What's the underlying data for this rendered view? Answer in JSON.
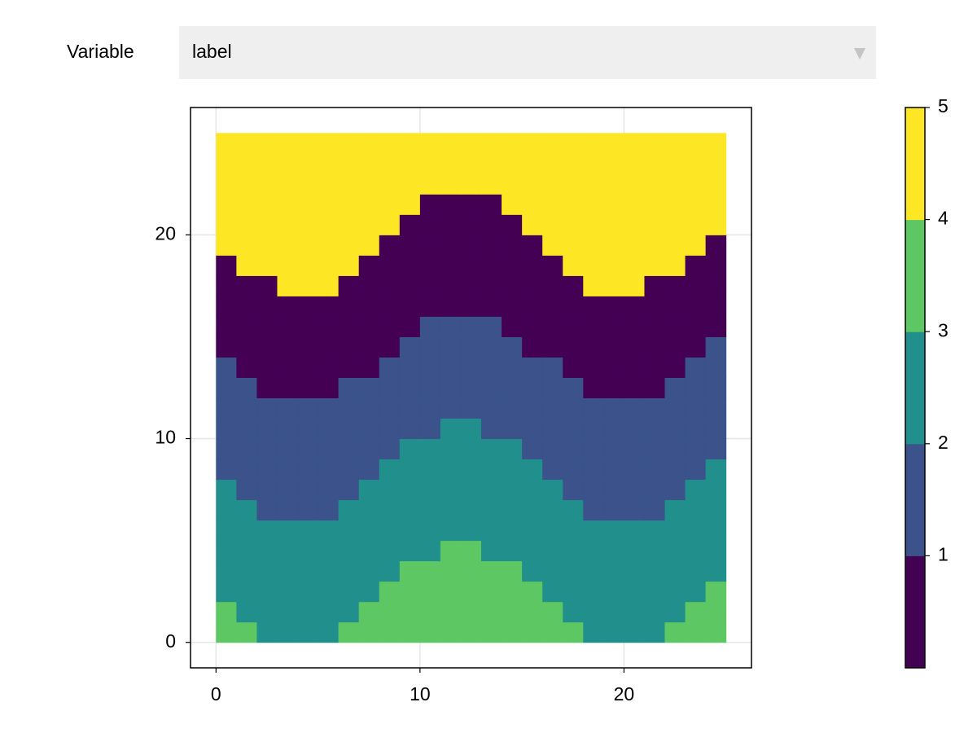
{
  "controls": {
    "label": "Variable",
    "selected": "label"
  },
  "chart_data": {
    "type": "heatmap",
    "x": [
      0,
      1,
      2,
      3,
      4,
      5,
      6,
      7,
      8,
      9,
      10,
      11,
      12,
      13,
      14,
      15,
      16,
      17,
      18,
      19,
      20,
      21,
      22,
      23,
      24,
      25
    ],
    "y": [
      0,
      1,
      2,
      3,
      4,
      5,
      6,
      7,
      8,
      9,
      10,
      11,
      12,
      13,
      14,
      15,
      16,
      17,
      18,
      19,
      20,
      21,
      22,
      23,
      24,
      25
    ],
    "z": [
      [
        3,
        3,
        2,
        2,
        2,
        2,
        3,
        3,
        3,
        3,
        3,
        3,
        3,
        3,
        3,
        3,
        3,
        3,
        2,
        2,
        2,
        2,
        3,
        3,
        3
      ],
      [
        3,
        2,
        2,
        2,
        2,
        2,
        2,
        3,
        3,
        3,
        3,
        3,
        3,
        3,
        3,
        3,
        3,
        2,
        2,
        2,
        2,
        2,
        2,
        3,
        3
      ],
      [
        2,
        2,
        2,
        2,
        2,
        2,
        2,
        2,
        3,
        3,
        3,
        3,
        3,
        3,
        3,
        3,
        2,
        2,
        2,
        2,
        2,
        2,
        2,
        2,
        3
      ],
      [
        2,
        2,
        2,
        2,
        2,
        2,
        2,
        2,
        2,
        3,
        3,
        3,
        3,
        3,
        3,
        2,
        2,
        2,
        2,
        2,
        2,
        2,
        2,
        2,
        2
      ],
      [
        2,
        2,
        2,
        2,
        2,
        2,
        2,
        2,
        2,
        2,
        2,
        3,
        3,
        2,
        2,
        2,
        2,
        2,
        2,
        2,
        2,
        2,
        2,
        2,
        2
      ],
      [
        2,
        2,
        2,
        2,
        2,
        2,
        2,
        2,
        2,
        2,
        2,
        2,
        2,
        2,
        2,
        2,
        2,
        2,
        2,
        2,
        2,
        2,
        2,
        2,
        2
      ],
      [
        2,
        2,
        1,
        1,
        1,
        1,
        2,
        2,
        2,
        2,
        2,
        2,
        2,
        2,
        2,
        2,
        2,
        2,
        1,
        1,
        1,
        1,
        2,
        2,
        2
      ],
      [
        2,
        1,
        1,
        1,
        1,
        1,
        1,
        2,
        2,
        2,
        2,
        2,
        2,
        2,
        2,
        2,
        2,
        1,
        1,
        1,
        1,
        1,
        1,
        2,
        2
      ],
      [
        1,
        1,
        1,
        1,
        1,
        1,
        1,
        1,
        2,
        2,
        2,
        2,
        2,
        2,
        2,
        2,
        1,
        1,
        1,
        1,
        1,
        1,
        1,
        1,
        2
      ],
      [
        1,
        1,
        1,
        1,
        1,
        1,
        1,
        1,
        1,
        2,
        2,
        2,
        2,
        2,
        2,
        1,
        1,
        1,
        1,
        1,
        1,
        1,
        1,
        1,
        1
      ],
      [
        1,
        1,
        1,
        1,
        1,
        1,
        1,
        1,
        1,
        1,
        1,
        2,
        2,
        1,
        1,
        1,
        1,
        1,
        1,
        1,
        1,
        1,
        1,
        1,
        1
      ],
      [
        1,
        1,
        1,
        1,
        1,
        1,
        1,
        1,
        1,
        1,
        1,
        1,
        1,
        1,
        1,
        1,
        1,
        1,
        1,
        1,
        1,
        1,
        1,
        1,
        1
      ],
      [
        1,
        1,
        0,
        0,
        0,
        0,
        1,
        1,
        1,
        1,
        1,
        1,
        1,
        1,
        1,
        1,
        1,
        1,
        0,
        0,
        0,
        0,
        1,
        1,
        1
      ],
      [
        1,
        0,
        0,
        0,
        0,
        0,
        0,
        0,
        1,
        1,
        1,
        1,
        1,
        1,
        1,
        1,
        1,
        0,
        0,
        0,
        0,
        0,
        0,
        1,
        1
      ],
      [
        0,
        0,
        0,
        0,
        0,
        0,
        0,
        0,
        0,
        1,
        1,
        1,
        1,
        1,
        1,
        0,
        0,
        0,
        0,
        0,
        0,
        0,
        0,
        0,
        1
      ],
      [
        0,
        0,
        0,
        0,
        0,
        0,
        0,
        0,
        0,
        0,
        1,
        1,
        1,
        1,
        0,
        0,
        0,
        0,
        0,
        0,
        0,
        0,
        0,
        0,
        0
      ],
      [
        0,
        0,
        0,
        0,
        0,
        0,
        0,
        0,
        0,
        0,
        0,
        0,
        0,
        0,
        0,
        0,
        0,
        0,
        0,
        0,
        0,
        0,
        0,
        0,
        0
      ],
      [
        0,
        0,
        0,
        4,
        4,
        4,
        0,
        0,
        0,
        0,
        0,
        0,
        0,
        0,
        0,
        0,
        0,
        0,
        4,
        4,
        4,
        0,
        0,
        0,
        0
      ],
      [
        0,
        4,
        4,
        4,
        4,
        4,
        4,
        0,
        0,
        0,
        0,
        0,
        0,
        0,
        0,
        0,
        0,
        4,
        4,
        4,
        4,
        4,
        4,
        0,
        0
      ],
      [
        4,
        4,
        4,
        4,
        4,
        4,
        4,
        4,
        0,
        0,
        0,
        0,
        0,
        0,
        0,
        0,
        4,
        4,
        4,
        4,
        4,
        4,
        4,
        4,
        0
      ],
      [
        4,
        4,
        4,
        4,
        4,
        4,
        4,
        4,
        4,
        0,
        0,
        0,
        0,
        0,
        0,
        4,
        4,
        4,
        4,
        4,
        4,
        4,
        4,
        4,
        4
      ],
      [
        4,
        4,
        4,
        4,
        4,
        4,
        4,
        4,
        4,
        4,
        0,
        0,
        0,
        0,
        4,
        4,
        4,
        4,
        4,
        4,
        4,
        4,
        4,
        4,
        4
      ],
      [
        4,
        4,
        4,
        4,
        4,
        4,
        4,
        4,
        4,
        4,
        4,
        4,
        4,
        4,
        4,
        4,
        4,
        4,
        4,
        4,
        4,
        4,
        4,
        4,
        4
      ],
      [
        4,
        4,
        4,
        4,
        4,
        4,
        4,
        4,
        4,
        4,
        4,
        4,
        4,
        4,
        4,
        4,
        4,
        4,
        4,
        4,
        4,
        4,
        4,
        4,
        4
      ],
      [
        4,
        4,
        4,
        4,
        4,
        4,
        4,
        4,
        4,
        4,
        4,
        4,
        4,
        4,
        4,
        4,
        4,
        4,
        4,
        4,
        4,
        4,
        4,
        4,
        4
      ]
    ],
    "colors": [
      "#440154",
      "#3b528b",
      "#21908d",
      "#5dc863",
      "#fde725"
    ],
    "clim": [
      0,
      5
    ],
    "colorbar_ticks": [
      1,
      2,
      3,
      4,
      5
    ],
    "xlim": [
      -1.25,
      26.25
    ],
    "xticks": [
      0,
      10,
      20
    ],
    "ylim": [
      -1.25,
      26.25
    ],
    "yticks": [
      0,
      10,
      20
    ],
    "grid": true
  }
}
